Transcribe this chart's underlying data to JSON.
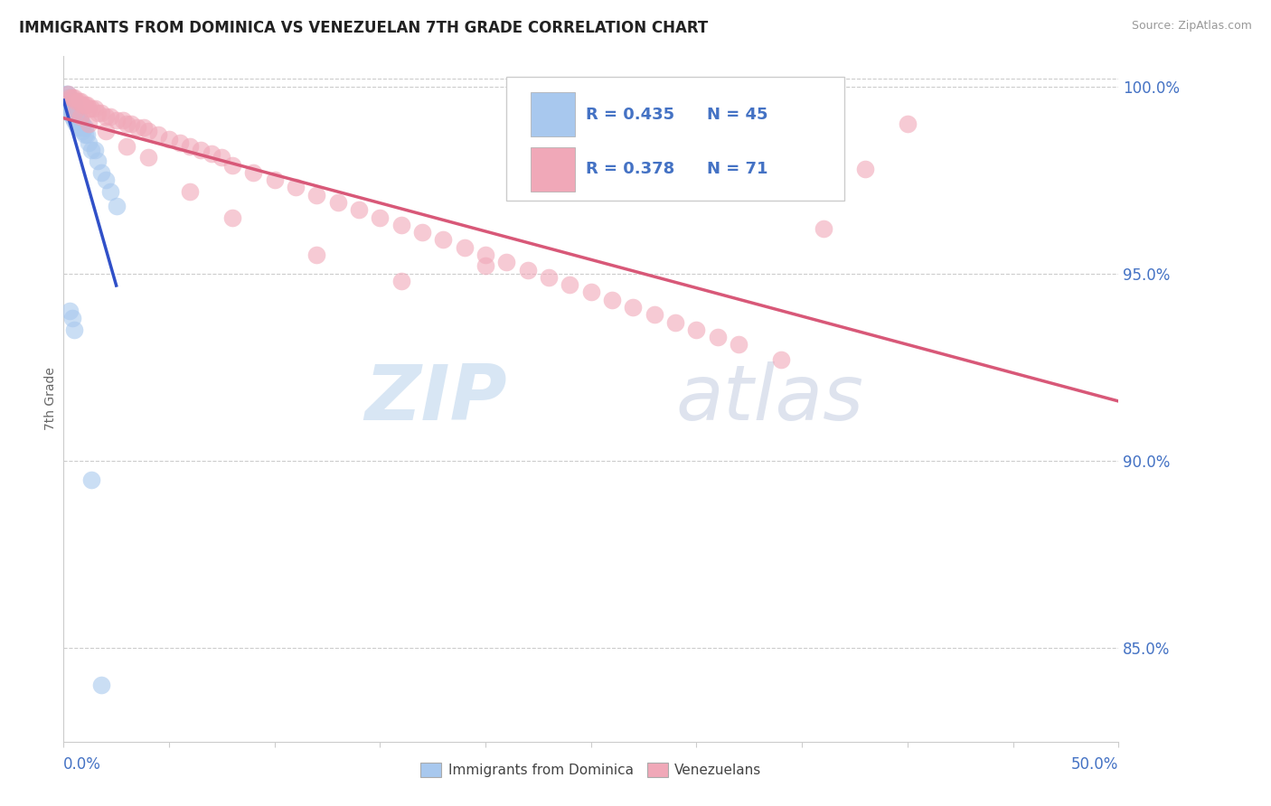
{
  "title": "IMMIGRANTS FROM DOMINICA VS VENEZUELAN 7TH GRADE CORRELATION CHART",
  "source": "Source: ZipAtlas.com",
  "ylabel": "7th Grade",
  "r1": 0.435,
  "n1": 45,
  "r2": 0.378,
  "n2": 71,
  "color_blue": "#A8C8EE",
  "color_pink": "#F0A8B8",
  "line_blue": "#3050C8",
  "line_pink": "#D85878",
  "watermark_zip": "ZIP",
  "watermark_atlas": "atlas",
  "legend1_label": "Immigrants from Dominica",
  "legend2_label": "Venezuelans",
  "xlim": [
    0.0,
    0.5
  ],
  "ylim": [
    0.825,
    1.008
  ],
  "ytick_vals": [
    0.85,
    0.9,
    0.95,
    1.0
  ],
  "ytick_labels": [
    "85.0%",
    "90.0%",
    "95.0%",
    "100.0%"
  ],
  "blue_x": [
    0.001,
    0.001,
    0.002,
    0.002,
    0.002,
    0.002,
    0.003,
    0.003,
    0.003,
    0.003,
    0.003,
    0.004,
    0.004,
    0.004,
    0.004,
    0.005,
    0.005,
    0.005,
    0.005,
    0.006,
    0.006,
    0.006,
    0.007,
    0.007,
    0.007,
    0.008,
    0.008,
    0.009,
    0.009,
    0.01,
    0.01,
    0.011,
    0.012,
    0.013,
    0.015,
    0.016,
    0.018,
    0.02,
    0.022,
    0.025,
    0.003,
    0.004,
    0.005,
    0.013,
    0.018
  ],
  "blue_y": [
    0.998,
    0.996,
    0.998,
    0.997,
    0.996,
    0.995,
    0.997,
    0.996,
    0.995,
    0.994,
    0.993,
    0.996,
    0.994,
    0.993,
    0.992,
    0.995,
    0.994,
    0.993,
    0.991,
    0.993,
    0.992,
    0.99,
    0.992,
    0.991,
    0.989,
    0.991,
    0.989,
    0.99,
    0.988,
    0.989,
    0.987,
    0.987,
    0.985,
    0.983,
    0.983,
    0.98,
    0.977,
    0.975,
    0.972,
    0.968,
    0.94,
    0.938,
    0.935,
    0.895,
    0.84
  ],
  "pink_x": [
    0.002,
    0.003,
    0.004,
    0.005,
    0.006,
    0.007,
    0.008,
    0.009,
    0.01,
    0.011,
    0.012,
    0.013,
    0.015,
    0.016,
    0.018,
    0.02,
    0.022,
    0.025,
    0.028,
    0.03,
    0.032,
    0.035,
    0.038,
    0.04,
    0.045,
    0.05,
    0.055,
    0.06,
    0.065,
    0.07,
    0.075,
    0.08,
    0.09,
    0.1,
    0.11,
    0.12,
    0.13,
    0.14,
    0.15,
    0.16,
    0.17,
    0.18,
    0.19,
    0.2,
    0.21,
    0.22,
    0.23,
    0.24,
    0.25,
    0.26,
    0.27,
    0.28,
    0.29,
    0.3,
    0.31,
    0.32,
    0.34,
    0.36,
    0.38,
    0.4,
    0.005,
    0.008,
    0.012,
    0.02,
    0.03,
    0.04,
    0.06,
    0.08,
    0.12,
    0.16,
    0.2
  ],
  "pink_y": [
    0.998,
    0.997,
    0.997,
    0.997,
    0.996,
    0.996,
    0.996,
    0.995,
    0.995,
    0.995,
    0.994,
    0.994,
    0.994,
    0.993,
    0.993,
    0.992,
    0.992,
    0.991,
    0.991,
    0.99,
    0.99,
    0.989,
    0.989,
    0.988,
    0.987,
    0.986,
    0.985,
    0.984,
    0.983,
    0.982,
    0.981,
    0.979,
    0.977,
    0.975,
    0.973,
    0.971,
    0.969,
    0.967,
    0.965,
    0.963,
    0.961,
    0.959,
    0.957,
    0.955,
    0.953,
    0.951,
    0.949,
    0.947,
    0.945,
    0.943,
    0.941,
    0.939,
    0.937,
    0.935,
    0.933,
    0.931,
    0.927,
    0.962,
    0.978,
    0.99,
    0.993,
    0.992,
    0.99,
    0.988,
    0.984,
    0.981,
    0.972,
    0.965,
    0.955,
    0.948,
    0.952
  ]
}
